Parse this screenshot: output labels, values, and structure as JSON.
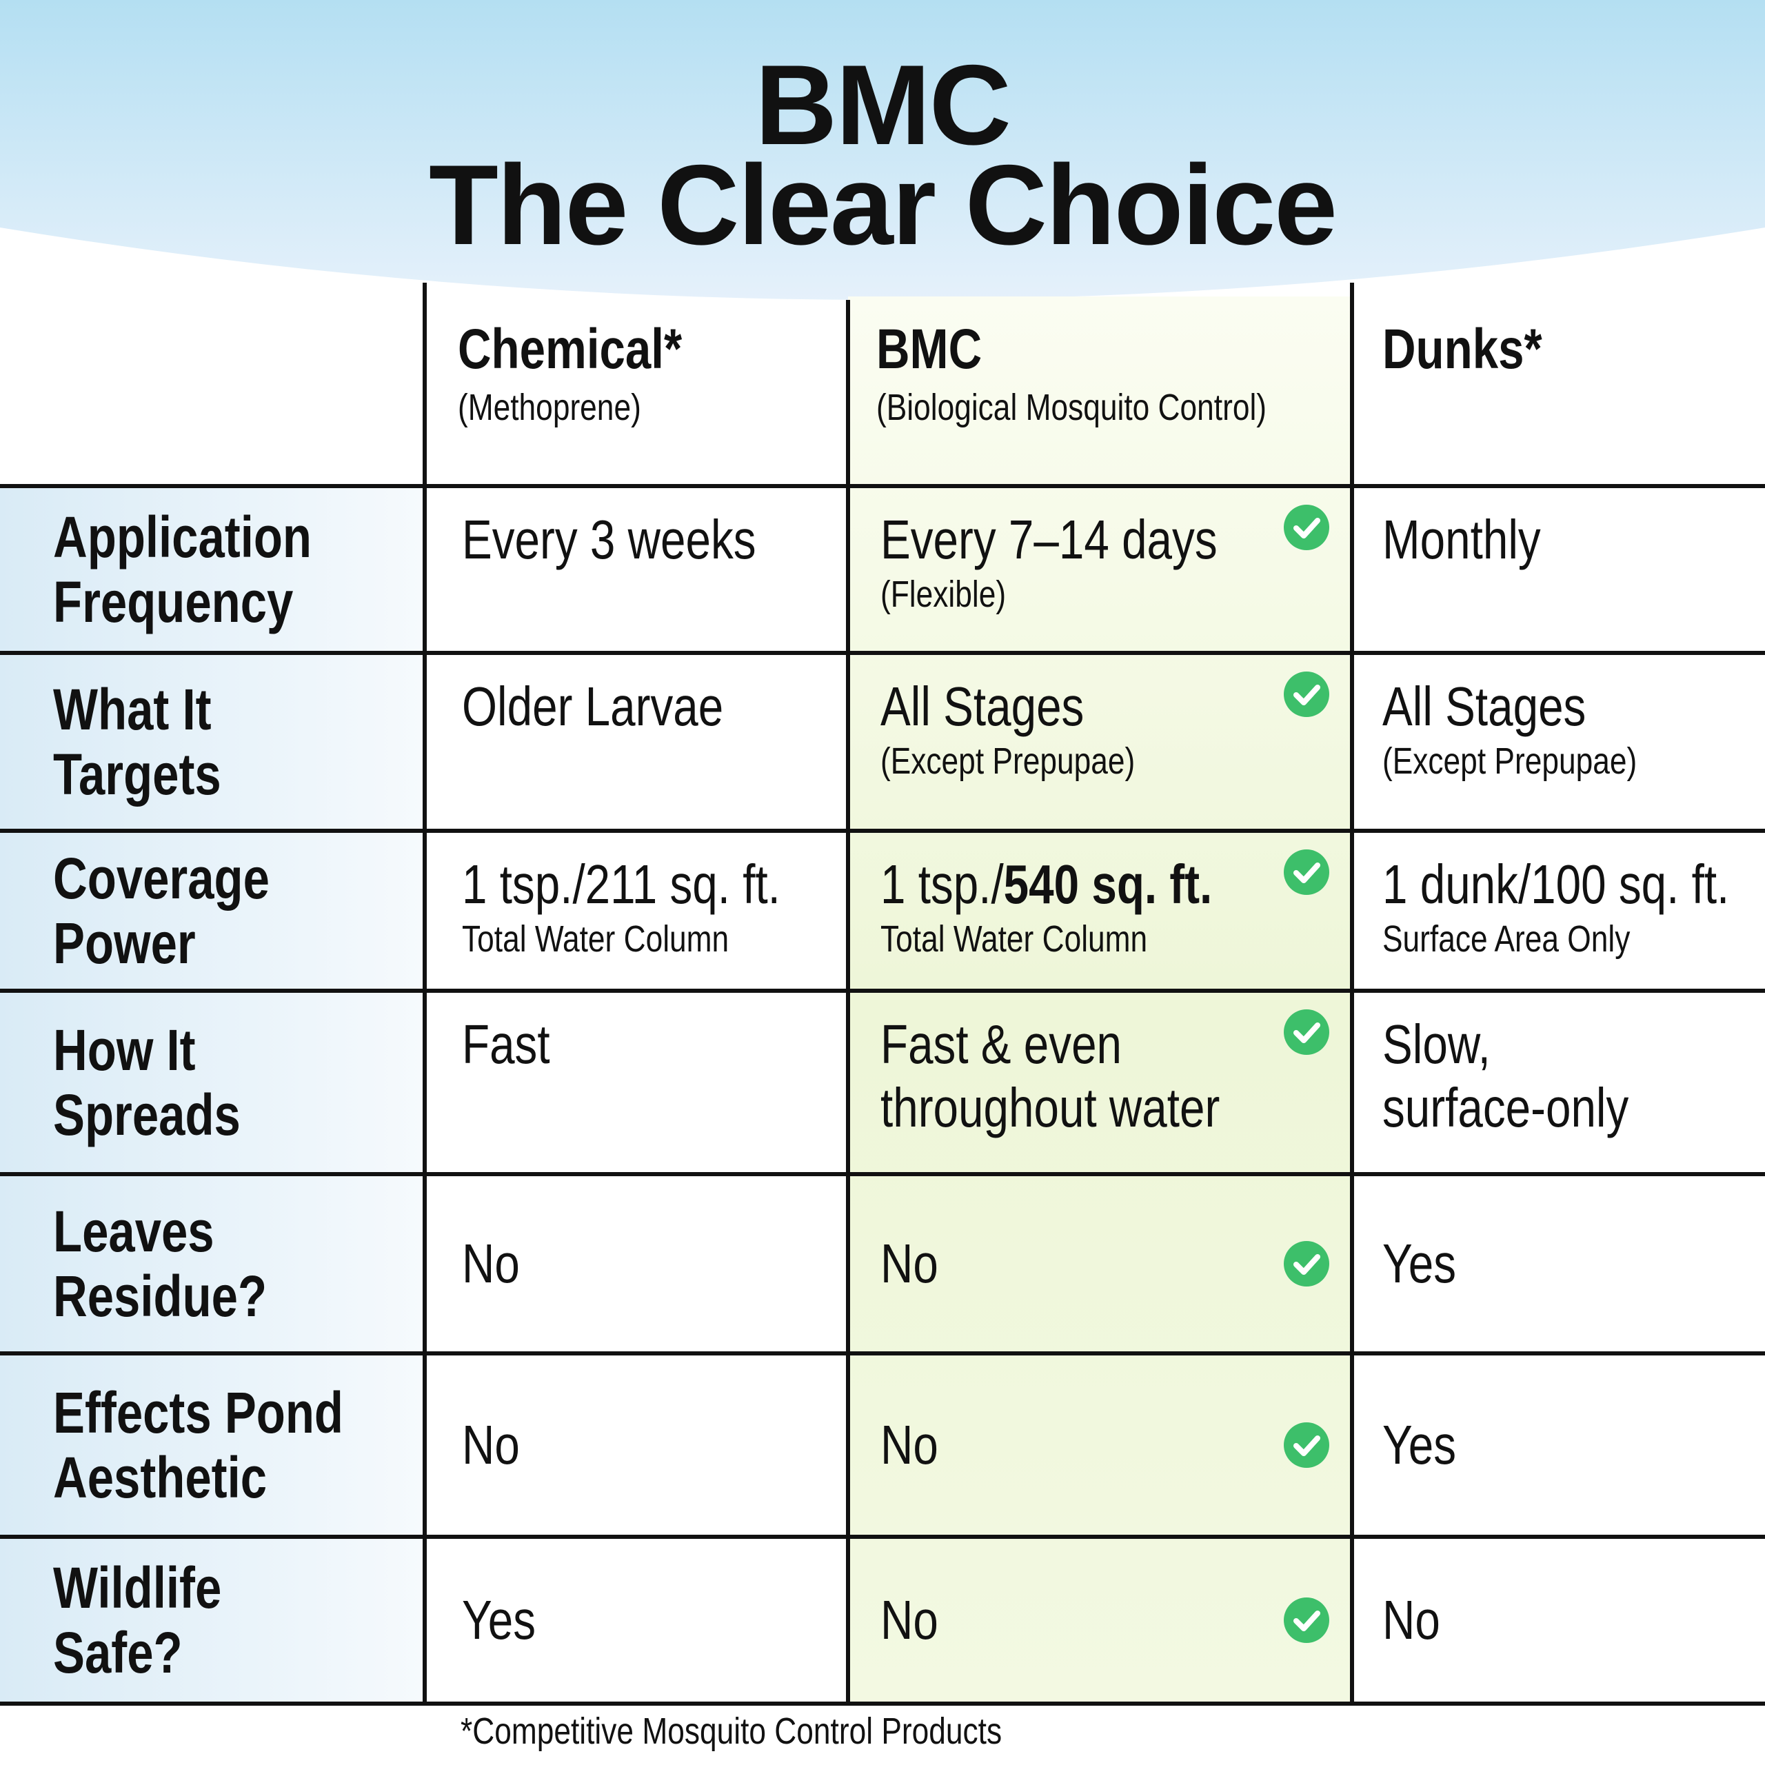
{
  "header": {
    "title_line1": "BMC",
    "title_line2": "The Clear Choice"
  },
  "table": {
    "columns": [
      {
        "name": "Chemical*",
        "subtitle": "(Methoprene)"
      },
      {
        "name": "BMC",
        "subtitle": "(Biological Mosquito Control)"
      },
      {
        "name": "Dunks*"
      }
    ],
    "rows": [
      {
        "label": [
          "Application",
          "Frequency"
        ],
        "cells": [
          {
            "text": [
              "Every 3 weeks"
            ]
          },
          {
            "text": [
              "Every 7–14 days"
            ],
            "sub": "(Flexible)"
          },
          {
            "text": [
              "Monthly"
            ]
          }
        ]
      },
      {
        "label": [
          "What It",
          "Targets"
        ],
        "cells": [
          {
            "text": [
              "Older Larvae"
            ]
          },
          {
            "text": [
              "All Stages"
            ],
            "sub": "(Except Prepupae)"
          },
          {
            "text": [
              "All Stages"
            ],
            "sub": "(Except Prepupae)"
          }
        ]
      },
      {
        "label": [
          "Coverage",
          "Power"
        ],
        "cells": [
          {
            "text": [
              "1 tsp./211 sq. ft."
            ],
            "sub": "Total Water Column"
          },
          {
            "text": [
              "1 tsp./"
            ],
            "text_bold": "540 sq. ft.",
            "sub": "Total Water Column"
          },
          {
            "text": [
              "1 dunk/100 sq. ft."
            ],
            "sub": "Surface Area Only"
          }
        ]
      },
      {
        "label": [
          "How It",
          "Spreads"
        ],
        "cells": [
          {
            "text": [
              "Fast"
            ]
          },
          {
            "text": [
              "Fast & even",
              "throughout water"
            ]
          },
          {
            "text": [
              "Slow,",
              "surface-only"
            ]
          }
        ]
      },
      {
        "label": [
          "Leaves",
          "Residue?"
        ],
        "cells": [
          {
            "text": [
              "No"
            ]
          },
          {
            "text": [
              "No"
            ]
          },
          {
            "text": [
              "Yes"
            ]
          }
        ]
      },
      {
        "label": [
          "Effects Pond",
          "Aesthetic"
        ],
        "cells": [
          {
            "text": [
              "No"
            ]
          },
          {
            "text": [
              "No"
            ]
          },
          {
            "text": [
              "Yes"
            ]
          }
        ]
      },
      {
        "label": [
          "Wildlife",
          "Safe?"
        ],
        "cells": [
          {
            "text": [
              "Yes"
            ]
          },
          {
            "text": [
              "No"
            ]
          },
          {
            "text": [
              "No"
            ]
          }
        ]
      }
    ]
  },
  "footnote": "*Competitive Mosquito Control Products"
}
